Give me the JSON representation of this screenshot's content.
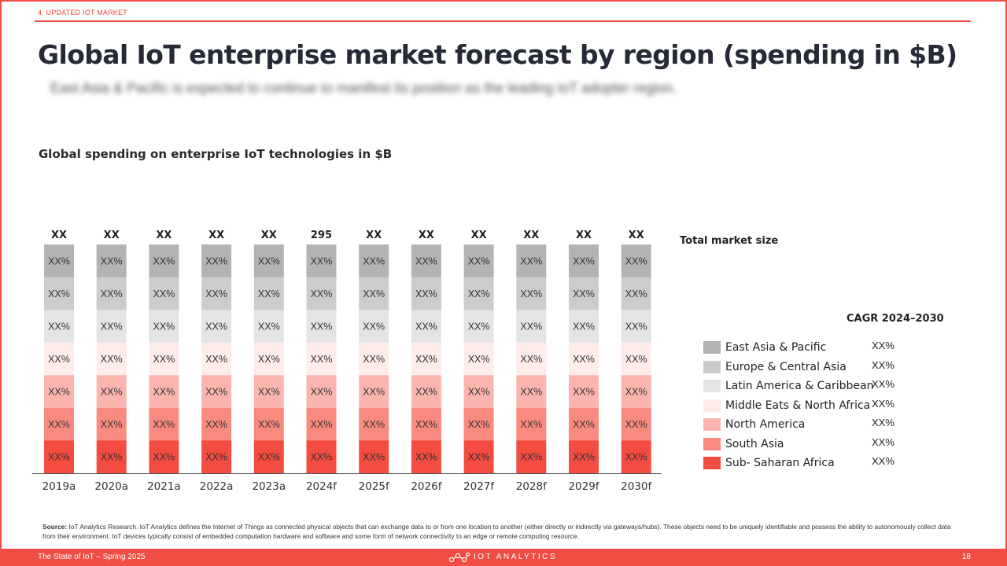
{
  "header": {
    "section_tag": "4. UPDATED IOT MARKET",
    "title": "Global IoT enterprise market forecast by region (spending in $B)",
    "subtitle": "East Asia & Pacific is expected to continue to manifest its position as the leading IoT adopter region."
  },
  "chart_data": {
    "type": "bar",
    "stacked": true,
    "percent_stacked": true,
    "title": "Global spending on enterprise IoT technologies in $B",
    "categories": [
      "2019a",
      "2020a",
      "2021a",
      "2022a",
      "2023a",
      "2024f",
      "2025f",
      "2026f",
      "2027f",
      "2028f",
      "2029f",
      "2030f"
    ],
    "totals": [
      "XX",
      "XX",
      "XX",
      "XX",
      "XX",
      "295",
      "XX",
      "XX",
      "XX",
      "XX",
      "XX",
      "XX"
    ],
    "total_label": "Total market size",
    "cagr_label": "CAGR 2024–2030",
    "series": [
      {
        "name": "East Asia & Pacific",
        "color": "#b3b3b3",
        "cagr": "XX%",
        "label": "XX%"
      },
      {
        "name": "Europe & Central Asia",
        "color": "#cccccc",
        "cagr": "XX%",
        "label": "XX%"
      },
      {
        "name": "Latin America & Caribbean",
        "color": "#e4e4e4",
        "cagr": "XX%",
        "label": "XX%"
      },
      {
        "name": "Middle Eats & North Africa",
        "color": "#fdecea",
        "cagr": "XX%",
        "label": "XX%"
      },
      {
        "name": "North America",
        "color": "#fbb5ae",
        "cagr": "XX%",
        "label": "XX%"
      },
      {
        "name": "South Asia",
        "color": "#f98a80",
        "cagr": "XX%",
        "label": "XX%"
      },
      {
        "name": "Sub- Saharan Africa",
        "color": "#f44c40",
        "cagr": "XX%",
        "label": "XX%"
      }
    ],
    "legend_position": "right",
    "grid": false
  },
  "source": {
    "label": "Source:",
    "text": "IoT Analytics Research. IoT Analytics defines the Internet of Things as connected physical objects that can exchange data to or from one location to another (either directly or indirectly via gateways/hubs). These objects need to be uniquely identifiable and possess the ability to autonomously collect data from their environment. IoT devices typically consist of embedded computation hardware and software and some form of network connectivity to an edge or remote computing resource."
  },
  "footer": {
    "left": "The State of IoT – Spring 2025",
    "brand": "IOT ANALYTICS",
    "page": "18"
  },
  "colors": {
    "accent": "#f04e45"
  }
}
